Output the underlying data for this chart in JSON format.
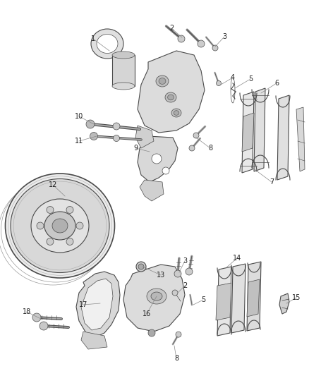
{
  "bg_color": "#ffffff",
  "line_color": "#4a4a4a",
  "light_fill": "#e8e8e8",
  "mid_fill": "#d0d0d0",
  "dark_fill": "#b8b8b8",
  "label_color": "#222222",
  "leader_color": "#888888",
  "label_fontsize": 7.0,
  "fig_w": 4.38,
  "fig_h": 5.33,
  "dpi": 100
}
